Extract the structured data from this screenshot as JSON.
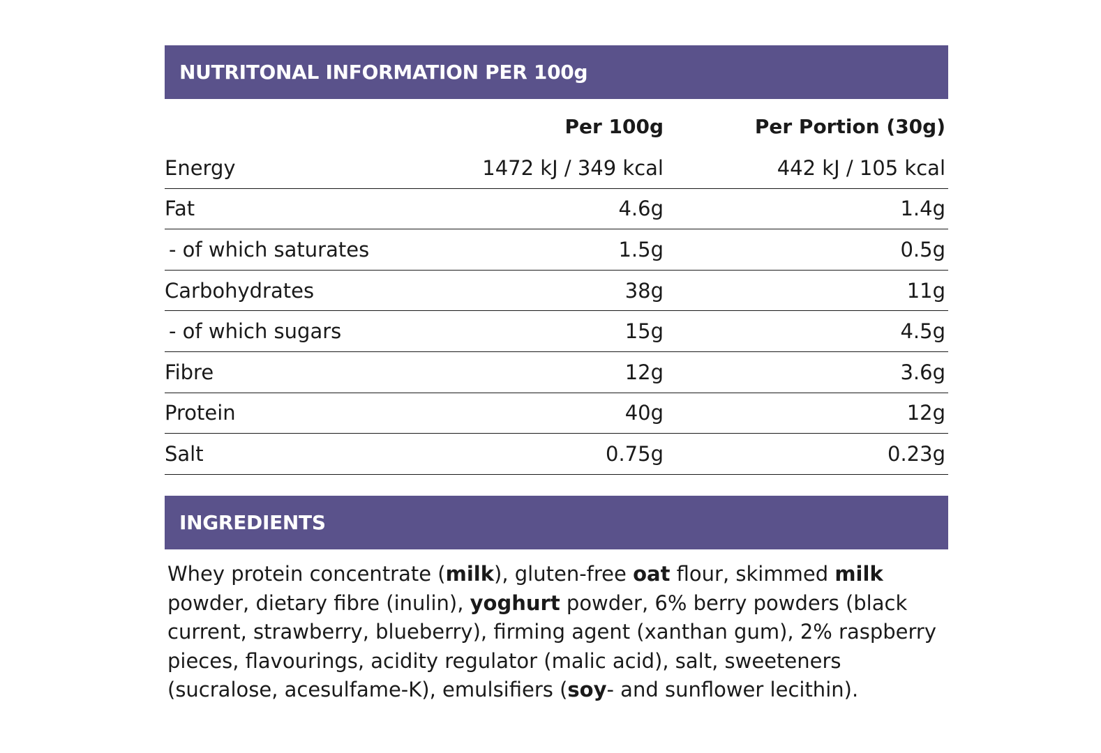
{
  "nutrition": {
    "title": "NUTRITONAL INFORMATION PER 100g",
    "headers": {
      "label": "",
      "per100": "Per 100g",
      "portion": "Per Portion (30g)"
    },
    "rows": [
      {
        "label": "Energy",
        "per100": "1472 kJ / 349 kcal",
        "portion": "442 kJ / 105 kcal",
        "sub": false
      },
      {
        "label": "Fat",
        "per100": "4.6g",
        "portion": "1.4g",
        "sub": false
      },
      {
        "label": "- of which saturates",
        "per100": "1.5g",
        "portion": "0.5g",
        "sub": true
      },
      {
        "label": "Carbohydrates",
        "per100": "38g",
        "portion": "11g",
        "sub": false
      },
      {
        "label": "- of which sugars",
        "per100": "15g",
        "portion": "4.5g",
        "sub": true
      },
      {
        "label": "Fibre",
        "per100": "12g",
        "portion": "3.6g",
        "sub": false
      },
      {
        "label": "Protein",
        "per100": "40g",
        "portion": "12g",
        "sub": false
      },
      {
        "label": "Salt",
        "per100": "0.75g",
        "portion": "0.23g",
        "sub": false
      }
    ]
  },
  "ingredients": {
    "title": "INGREDIENTS",
    "segments": [
      {
        "text": "Whey protein concentrate (",
        "bold": false
      },
      {
        "text": "milk",
        "bold": true
      },
      {
        "text": "), gluten-free ",
        "bold": false
      },
      {
        "text": "oat",
        "bold": true
      },
      {
        "text": " flour, skimmed ",
        "bold": false
      },
      {
        "text": "milk",
        "bold": true
      },
      {
        "text": " powder, dietary fibre (inulin), ",
        "bold": false
      },
      {
        "text": "yoghurt",
        "bold": true
      },
      {
        "text": " powder, 6% berry powders (black current, strawberry, blueberry), firming agent (xanthan gum), 2% raspberry pieces, flavourings, acidity regulator (malic acid), salt, sweeteners (sucralose, acesulfame-K), emulsifiers (",
        "bold": false
      },
      {
        "text": "soy",
        "bold": true
      },
      {
        "text": "- and sunflower lecithin).",
        "bold": false
      }
    ]
  },
  "colors": {
    "banner_bg": "#5a528b",
    "banner_text": "#ffffff",
    "body_text": "#1a1a1a"
  }
}
